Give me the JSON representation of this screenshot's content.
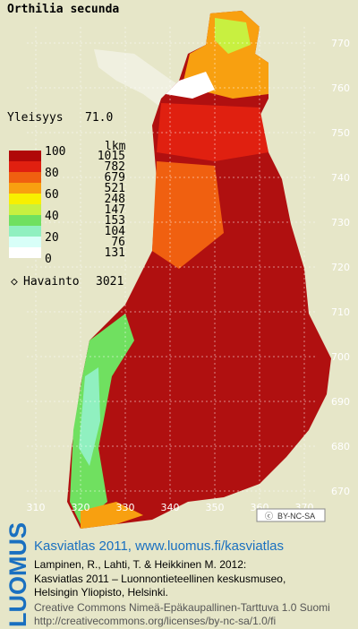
{
  "title": "Orthilia secunda",
  "frequency": {
    "label": "Yleisyys",
    "value": "71.0"
  },
  "legend": {
    "scale_labels": [
      100,
      80,
      60,
      40,
      20,
      0
    ],
    "count_header": "lkm",
    "classes": [
      {
        "count": 1015,
        "color": "#b00808"
      },
      {
        "count": 782,
        "color": "#e02010"
      },
      {
        "count": 679,
        "color": "#f06010"
      },
      {
        "count": 521,
        "color": "#f8a010"
      },
      {
        "count": 248,
        "color": "#f8f000"
      },
      {
        "count": 147,
        "color": "#c8f040"
      },
      {
        "count": 153,
        "color": "#70e060"
      },
      {
        "count": 104,
        "color": "#90f0c0"
      },
      {
        "count": 76,
        "color": "#d8fff8"
      },
      {
        "count": 131,
        "color": "#ffffff"
      }
    ]
  },
  "observations": {
    "label": "Havainto",
    "value": 3021
  },
  "yticks": [
    770,
    760,
    750,
    740,
    730,
    720,
    710,
    700,
    690,
    680,
    670
  ],
  "xticks": [
    310,
    320,
    330,
    340,
    350,
    360,
    370
  ],
  "license_badge": "BY-NC-SA",
  "footer": {
    "logo": "LUOMUS",
    "headline": "Kasviatlas 2011, www.luomus.fi/kasviatlas",
    "citation": [
      "Lampinen, R., Lahti, T. & Heikkinen M. 2012:",
      "Kasviatlas 2011 – Luonnontieteellinen keskusmuseo,",
      "Helsingin Yliopisto, Helsinki."
    ],
    "license": [
      "Creative Commons Nimeä-Epäkaupallinen-Tarttuva 1.0 Suomi",
      "http://creativecommons.org/licenses/by-nc-sa/1.0/fi"
    ]
  }
}
